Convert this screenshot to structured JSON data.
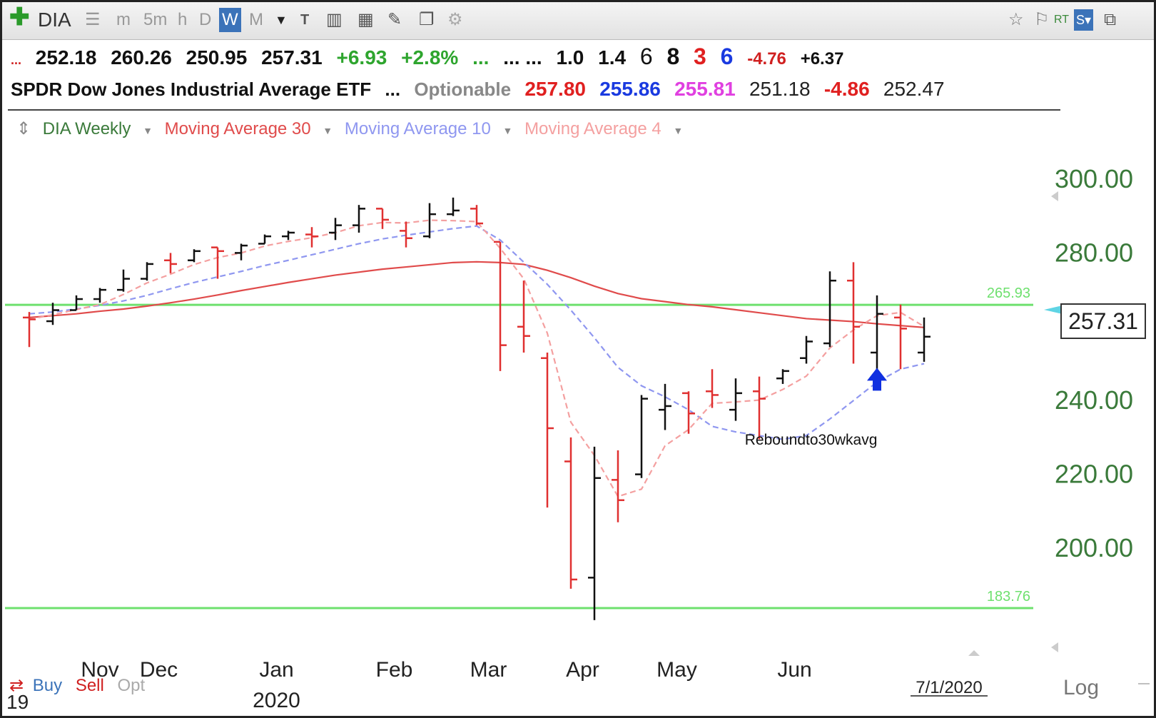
{
  "toolbar": {
    "symbol": "DIA",
    "timeframes": [
      "m",
      "5m",
      "h",
      "D",
      "W",
      "M"
    ],
    "active_timeframe": "W",
    "right_rt": "RT"
  },
  "quote_row1": {
    "dots": "...",
    "open": "252.18",
    "high": "260.26",
    "low": "250.95",
    "close": "257.31",
    "change": "+6.93",
    "change_pct": "+2.8%",
    "dots2": "...",
    "dots3": "... ...",
    "v1": "1.0",
    "v2": "1.4",
    "n1": "6",
    "n2": "8",
    "n3": "3",
    "n4": "6",
    "neg": "-4.76",
    "pos": "+6.37"
  },
  "quote_row2": {
    "name": "SPDR Dow Jones Industrial Average ETF",
    "dots": "...",
    "optionable": "Optionable",
    "p1": "257.80",
    "p2": "255.86",
    "p3": "255.81",
    "p4": "251.18",
    "p5": "-4.86",
    "p6": "252.47"
  },
  "legend": {
    "main": "DIA Weekly",
    "ma30": "Moving Average 30",
    "ma10": "Moving Average 10",
    "ma4": "Moving Average 4"
  },
  "colors": {
    "green_text": "#2e7d32",
    "ma30": "#e04b4b",
    "ma10": "#8f97f0",
    "ma4": "#f4a0a0",
    "up_bar": "#111111",
    "down_bar": "#e03030",
    "hline": "#6ee06e",
    "arrow": "#1030e0"
  },
  "price_box": "257.31",
  "bottom": {
    "buy": "Buy",
    "sell": "Sell",
    "opt": "Opt",
    "log": "Log",
    "date": "7/1/2020",
    "partial_nov": "Nov",
    "partial_19": "19"
  },
  "chart_data": {
    "type": "ohlc",
    "title": "DIA Weekly",
    "ylim": [
      178,
      306
    ],
    "yticks": [
      "300.00",
      "280.00",
      "240.00",
      "220.00",
      "200.00"
    ],
    "ytick_values": [
      300,
      280,
      240,
      220,
      200
    ],
    "xlabels": [
      {
        "label": "Dec",
        "week": 5.5
      },
      {
        "label": "Jan",
        "week": 10.5
      },
      {
        "label": "Feb",
        "week": 15.5
      },
      {
        "label": "Mar",
        "week": 19.5
      },
      {
        "label": "Apr",
        "week": 23.5
      },
      {
        "label": "May",
        "week": 27.5
      },
      {
        "label": "Jun",
        "week": 32.5
      }
    ],
    "year_label": {
      "label": "2020",
      "week": 10.5
    },
    "hlines": [
      {
        "value": 265.93,
        "label": "265.93"
      },
      {
        "value": 183.76,
        "label": "183.76"
      }
    ],
    "annotation": {
      "text": "Reboundto30wkavg",
      "week": 33.2,
      "value": 228
    },
    "arrow": {
      "week": 36,
      "value": 245
    },
    "bars": [
      {
        "o": 262.5,
        "h": 264.0,
        "l": 254.5,
        "c": 262.0
      },
      {
        "o": 261.5,
        "h": 266.5,
        "l": 260.5,
        "c": 264.5
      },
      {
        "o": 264.5,
        "h": 268.5,
        "l": 264.5,
        "c": 267.5
      },
      {
        "o": 267.5,
        "h": 270.5,
        "l": 266.5,
        "c": 270.0
      },
      {
        "o": 270.0,
        "h": 275.5,
        "l": 269.5,
        "c": 273.0
      },
      {
        "o": 273.0,
        "h": 277.5,
        "l": 272.5,
        "c": 277.0
      },
      {
        "o": 278.0,
        "h": 280.0,
        "l": 274.5,
        "c": 277.0
      },
      {
        "o": 278.0,
        "h": 281.0,
        "l": 277.5,
        "c": 280.5
      },
      {
        "o": 281.5,
        "h": 281.5,
        "l": 273.0,
        "c": 280.5
      },
      {
        "o": 280.0,
        "h": 282.5,
        "l": 278.0,
        "c": 282.0
      },
      {
        "o": 282.5,
        "h": 285.0,
        "l": 282.5,
        "c": 284.5
      },
      {
        "o": 284.5,
        "h": 286.0,
        "l": 283.5,
        "c": 285.5
      },
      {
        "o": 285.0,
        "h": 287.0,
        "l": 281.5,
        "c": 284.5
      },
      {
        "o": 285.5,
        "h": 289.5,
        "l": 283.5,
        "c": 287.5
      },
      {
        "o": 287.5,
        "h": 293.0,
        "l": 285.5,
        "c": 292.0
      },
      {
        "o": 292.0,
        "h": 292.0,
        "l": 286.5,
        "c": 289.0
      },
      {
        "o": 286.0,
        "h": 288.5,
        "l": 281.5,
        "c": 284.0
      },
      {
        "o": 284.5,
        "h": 293.5,
        "l": 284.0,
        "c": 290.5
      },
      {
        "o": 290.5,
        "h": 295.0,
        "l": 290.0,
        "c": 291.5
      },
      {
        "o": 292.0,
        "h": 293.0,
        "l": 287.5,
        "c": 288.0
      },
      {
        "o": 283.0,
        "h": 283.0,
        "l": 248.0,
        "c": 255.0
      },
      {
        "o": 260.0,
        "h": 272.5,
        "l": 253.0,
        "c": 257.5
      },
      {
        "o": 251.5,
        "h": 253.0,
        "l": 211.0,
        "c": 232.5
      },
      {
        "o": 223.5,
        "h": 230.0,
        "l": 189.0,
        "c": 191.5
      },
      {
        "o": 192.0,
        "h": 227.5,
        "l": 180.5,
        "c": 219.0
      },
      {
        "o": 218.5,
        "h": 226.5,
        "l": 207.0,
        "c": 213.0
      },
      {
        "o": 220.0,
        "h": 241.5,
        "l": 219.0,
        "c": 240.5
      },
      {
        "o": 237.5,
        "h": 244.5,
        "l": 232.0,
        "c": 238.5
      },
      {
        "o": 242.0,
        "h": 242.5,
        "l": 231.0,
        "c": 236.5
      },
      {
        "o": 242.5,
        "h": 248.5,
        "l": 238.0,
        "c": 241.5
      },
      {
        "o": 237.5,
        "h": 246.0,
        "l": 234.5,
        "c": 242.0
      },
      {
        "o": 242.5,
        "h": 246.5,
        "l": 229.5,
        "c": 240.5
      },
      {
        "o": 246.0,
        "h": 248.5,
        "l": 244.5,
        "c": 248.0
      },
      {
        "o": 251.5,
        "h": 257.5,
        "l": 250.0,
        "c": 256.0
      },
      {
        "o": 255.5,
        "h": 275.0,
        "l": 254.5,
        "c": 272.5
      },
      {
        "o": 272.5,
        "h": 277.5,
        "l": 250.0,
        "c": 260.0
      },
      {
        "o": 253.0,
        "h": 268.5,
        "l": 248.5,
        "c": 263.5
      },
      {
        "o": 262.5,
        "h": 266.0,
        "l": 248.5,
        "c": 259.5
      },
      {
        "o": 253.0,
        "h": 262.5,
        "l": 250.5,
        "c": 257.3
      }
    ],
    "ma30": [
      262.5,
      263.0,
      263.5,
      264.2,
      264.8,
      265.6,
      266.5,
      267.5,
      268.6,
      269.8,
      270.9,
      272.0,
      273.0,
      274.0,
      274.8,
      275.6,
      276.2,
      276.8,
      277.4,
      277.6,
      277.4,
      276.9,
      275.3,
      273.3,
      271.0,
      269.0,
      267.6,
      266.8,
      266.0,
      265.4,
      264.6,
      263.8,
      263.0,
      262.2,
      261.8,
      261.4,
      260.8,
      260.3,
      259.8
    ],
    "ma10": [
      263.5,
      264.0,
      264.8,
      265.8,
      267.0,
      268.5,
      270.3,
      272.0,
      273.5,
      275.0,
      276.6,
      278.0,
      279.5,
      281.0,
      282.5,
      283.8,
      284.8,
      285.7,
      286.6,
      287.3,
      283.5,
      277.5,
      271.5,
      264.5,
      257.0,
      249.0,
      244.0,
      241.0,
      237.5,
      233.0,
      231.5,
      230.5,
      229.5,
      230.5,
      235.0,
      240.0,
      245.0,
      248.5,
      250.0
    ]
  }
}
